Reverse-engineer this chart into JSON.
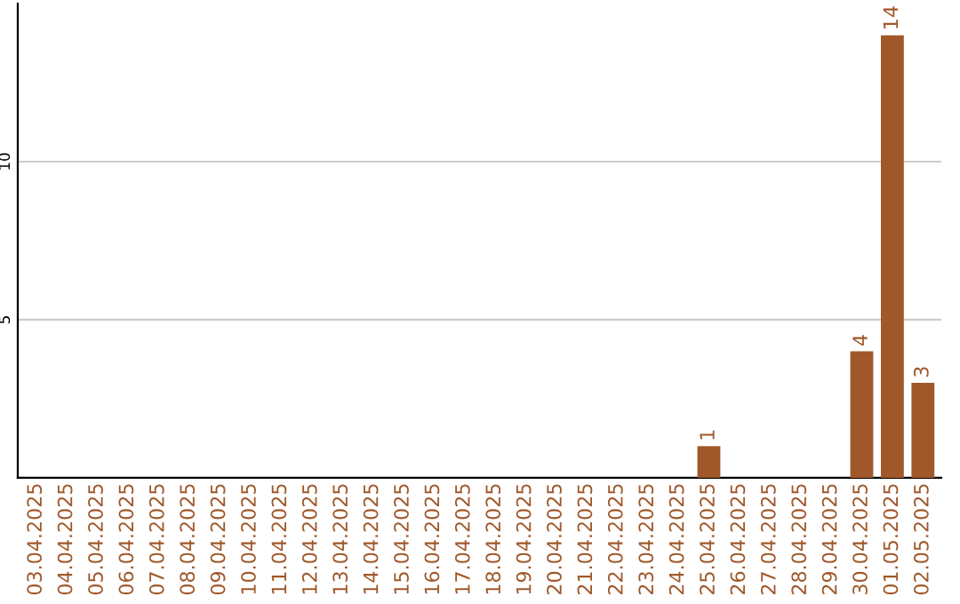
{
  "chart_data": {
    "type": "bar",
    "categories": [
      "03.04.2025",
      "04.04.2025",
      "05.04.2025",
      "06.04.2025",
      "07.04.2025",
      "08.04.2025",
      "09.04.2025",
      "10.04.2025",
      "11.04.2025",
      "12.04.2025",
      "13.04.2025",
      "14.04.2025",
      "15.04.2025",
      "16.04.2025",
      "17.04.2025",
      "18.04.2025",
      "19.04.2025",
      "20.04.2025",
      "21.04.2025",
      "22.04.2025",
      "23.04.2025",
      "24.04.2025",
      "25.04.2025",
      "26.04.2025",
      "27.04.2025",
      "28.04.2025",
      "29.04.2025",
      "30.04.2025",
      "01.05.2025",
      "02.05.2025"
    ],
    "values": [
      0,
      0,
      0,
      0,
      0,
      0,
      0,
      0,
      0,
      0,
      0,
      0,
      0,
      0,
      0,
      0,
      0,
      0,
      0,
      0,
      0,
      0,
      1,
      0,
      0,
      0,
      0,
      4,
      14,
      3
    ],
    "value_labels": [
      null,
      null,
      null,
      null,
      null,
      null,
      null,
      null,
      null,
      null,
      null,
      null,
      null,
      null,
      null,
      null,
      null,
      null,
      null,
      null,
      null,
      null,
      "1",
      null,
      null,
      null,
      null,
      "4",
      "14",
      "3"
    ],
    "color": "#a0582a",
    "ylim": [
      0,
      15
    ],
    "yticks": [
      5,
      10
    ],
    "grid": "y"
  }
}
